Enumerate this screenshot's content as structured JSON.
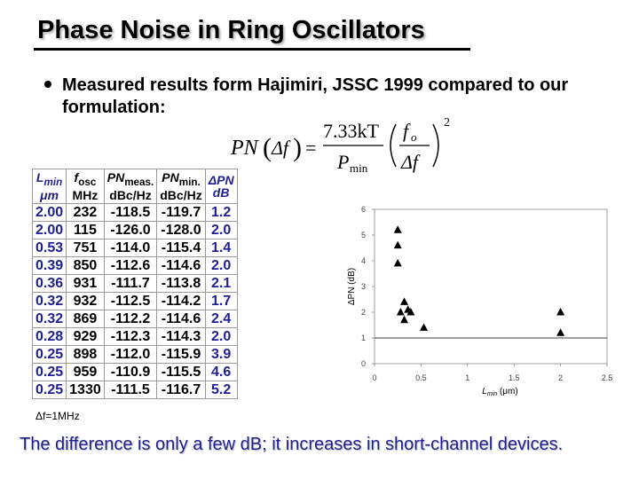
{
  "title": "Phase Noise in Ring Oscillators",
  "bullet": "Measured results form Hajimiri, JSSC 1999 compared to our formulation:",
  "formula": {
    "lhs": "PN",
    "arg": "Δf",
    "num": "7.33kT",
    "den": "P",
    "den_sub": "min",
    "frac_num": "f",
    "frac_num_sub": "o",
    "frac_den": "Δf",
    "exponent": "2"
  },
  "table": {
    "headers": [
      {
        "line1": "L",
        "line1_sub": "min",
        "line2": "μm"
      },
      {
        "line1": "f",
        "line1_sub": "osc",
        "line2": "MHz"
      },
      {
        "line1": "PN",
        "line1_sub": "meas.",
        "line2": "dBc/Hz"
      },
      {
        "line1": "PN",
        "line1_sub": "min.",
        "line2": "dBc/Hz"
      },
      {
        "line1": "ΔPN",
        "line1_sub": "",
        "line2": "dB"
      }
    ],
    "rows": [
      [
        "2.00",
        "232",
        "-118.5",
        "-119.7",
        "1.2"
      ],
      [
        "2.00",
        "115",
        "-126.0",
        "-128.0",
        "2.0"
      ],
      [
        "0.53",
        "751",
        "-114.0",
        "-115.4",
        "1.4"
      ],
      [
        "0.39",
        "850",
        "-112.6",
        "-114.6",
        "2.0"
      ],
      [
        "0.36",
        "931",
        "-111.7",
        "-113.8",
        "2.1"
      ],
      [
        "0.32",
        "932",
        "-112.5",
        "-114.2",
        "1.7"
      ],
      [
        "0.32",
        "869",
        "-112.2",
        "-114.6",
        "2.4"
      ],
      [
        "0.28",
        "929",
        "-112.3",
        "-114.3",
        "2.0"
      ],
      [
        "0.25",
        "898",
        "-112.0",
        "-115.9",
        "3.9"
      ],
      [
        "0.25",
        "959",
        "-110.9",
        "-115.5",
        "4.6"
      ],
      [
        "0.25",
        "1330",
        "-111.5",
        "-116.7",
        "5.2"
      ]
    ],
    "note": "Δf=1MHz"
  },
  "chart_data": {
    "type": "scatter",
    "xlabel": "L",
    "xlabel_sub": "min",
    "xlabel_unit": "(μm)",
    "ylabel": "ΔPN (dB)",
    "xlim": [
      0,
      2.5
    ],
    "ylim": [
      0,
      6
    ],
    "xticks": [
      0,
      0.5,
      1,
      1.5,
      2,
      2.5
    ],
    "xtick_labels": [
      "0",
      "0.5",
      "1",
      "1.5",
      "2",
      "2.5"
    ],
    "yticks": [
      0,
      1,
      2,
      3,
      4,
      5,
      6
    ],
    "ytick_labels": [
      "0",
      "1",
      "2",
      "3",
      "4",
      "5",
      "6"
    ],
    "reference_line_y": 1,
    "marker": "triangle",
    "points": [
      {
        "x": 2.0,
        "y": 1.2
      },
      {
        "x": 2.0,
        "y": 2.0
      },
      {
        "x": 0.53,
        "y": 1.4
      },
      {
        "x": 0.39,
        "y": 2.0
      },
      {
        "x": 0.36,
        "y": 2.1
      },
      {
        "x": 0.32,
        "y": 1.7
      },
      {
        "x": 0.32,
        "y": 2.4
      },
      {
        "x": 0.28,
        "y": 2.0
      },
      {
        "x": 0.25,
        "y": 3.9
      },
      {
        "x": 0.25,
        "y": 4.6
      },
      {
        "x": 0.25,
        "y": 5.2
      }
    ]
  },
  "footer": "The difference is only a few dB; it increases in short-channel devices."
}
